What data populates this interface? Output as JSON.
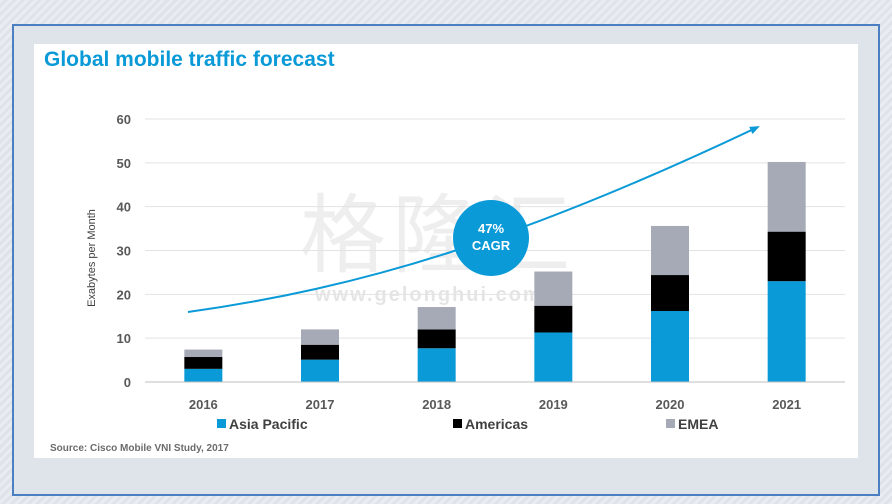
{
  "title": "Global mobile traffic forecast",
  "source": "Source: Cisco Mobile VNI Study, 2017",
  "watermark": {
    "text": "格隆汇",
    "url": "www.gelonghui.com"
  },
  "annotation": {
    "line1": "47%",
    "line2": "CAGR",
    "color": "#0a9ad7"
  },
  "colors": {
    "Asia Pacific": "#0a9ad7",
    "Americas": "#000000",
    "EMEA": "#a6a9b6",
    "accent": "#0a9ad7"
  },
  "chart_data": {
    "type": "bar",
    "stacked": true,
    "title": "Global mobile traffic forecast",
    "xlabel": "",
    "ylabel": "Exabytes per Month",
    "ylim": [
      0,
      60
    ],
    "yticks": [
      0,
      10,
      20,
      30,
      40,
      50,
      60
    ],
    "grid": true,
    "legend": "bottom",
    "categories": [
      "2016",
      "2017",
      "2018",
      "2019",
      "2020",
      "2021"
    ],
    "series": [
      {
        "name": "Asia Pacific",
        "values": [
          3.0,
          5.1,
          7.7,
          11.3,
          16.2,
          23.0
        ]
      },
      {
        "name": "Americas",
        "values": [
          2.7,
          3.4,
          4.3,
          6.1,
          8.2,
          11.3
        ]
      },
      {
        "name": "EMEA",
        "values": [
          1.7,
          3.5,
          5.1,
          7.8,
          11.2,
          15.9
        ]
      }
    ]
  }
}
